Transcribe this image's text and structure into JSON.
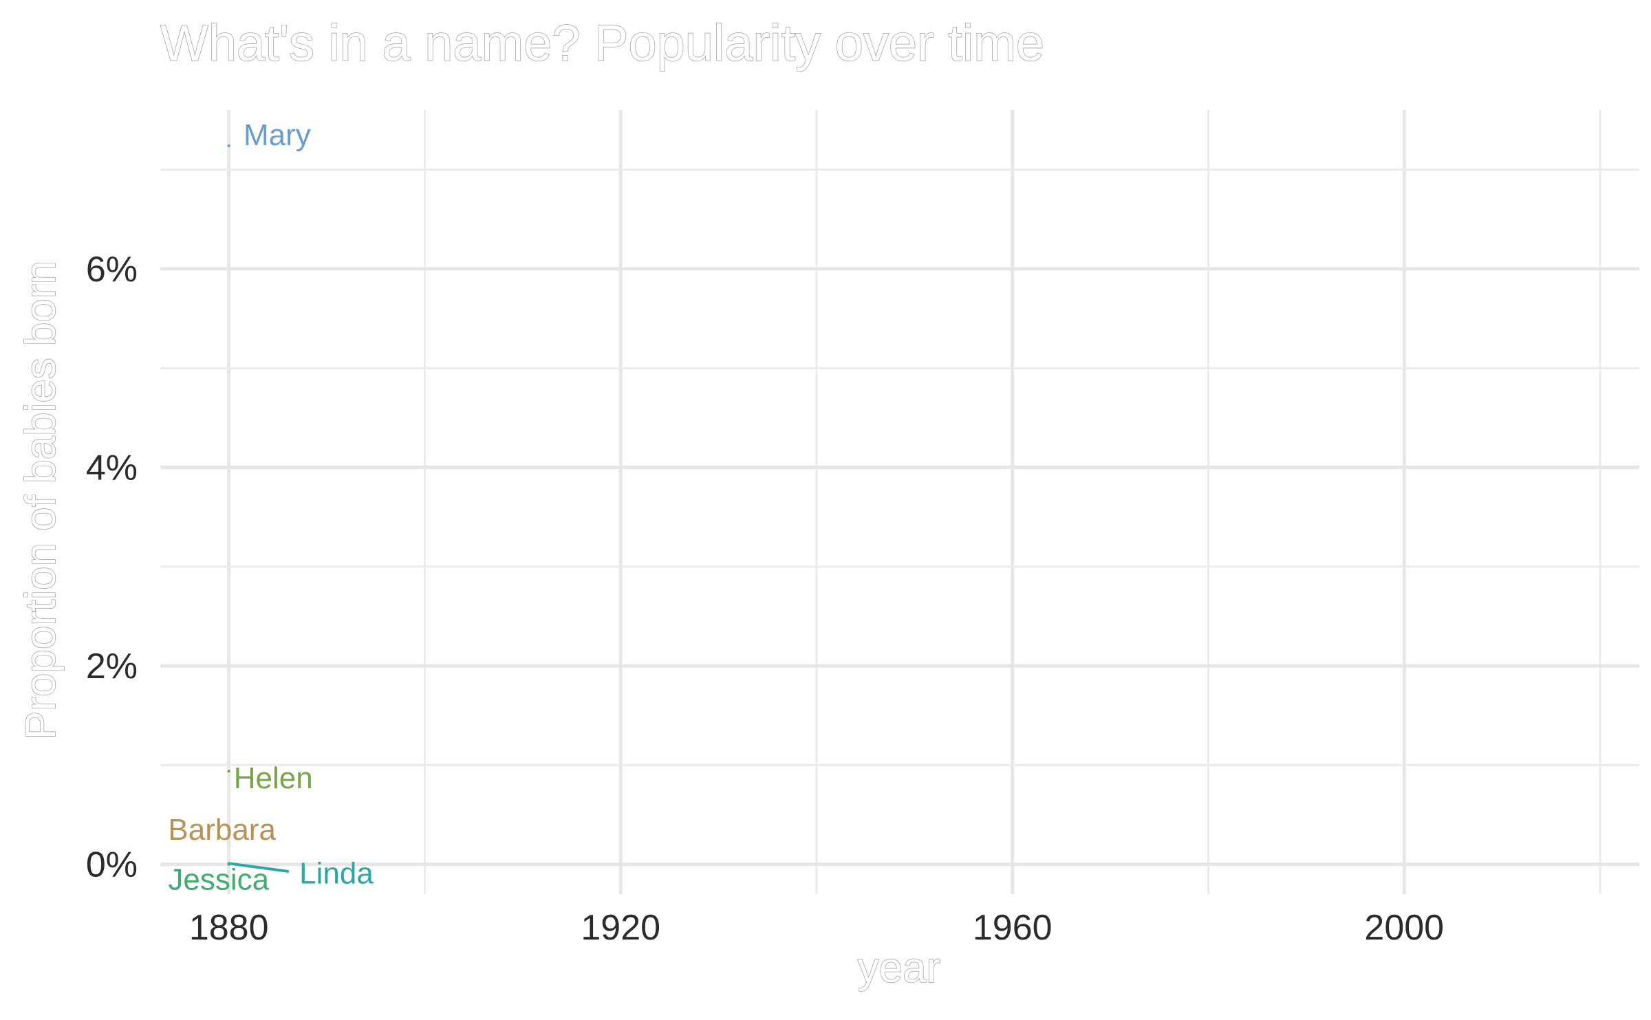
{
  "chart_data": {
    "type": "line",
    "title": "What's in a name? Popularity over time",
    "xlabel": "year",
    "ylabel": "Proportion of babies born",
    "x_ticks": [
      "1880",
      "1920",
      "1960",
      "2000"
    ],
    "x_tick_values": [
      1880,
      1920,
      1960,
      2000
    ],
    "y_ticks": [
      "0%",
      "2%",
      "4%",
      "6%"
    ],
    "y_tick_values": [
      0,
      0.02,
      0.04,
      0.06
    ],
    "xlim": [
      1873,
      2024
    ],
    "ylim": [
      -0.003,
      0.076
    ],
    "grid": true,
    "legend": "none",
    "series": [
      {
        "name": "Mary",
        "color": "#6a9ccd",
        "points": [
          [
            1880,
            0.0724
          ]
        ],
        "label": {
          "x": 1881.5,
          "y": 0.0735
        }
      },
      {
        "name": "Helen",
        "color": "#79a548",
        "points": [
          [
            1880,
            0.0094
          ]
        ],
        "label": {
          "x": 1880.5,
          "y": 0.0087
        }
      },
      {
        "name": "Barbara",
        "color": "#b69257",
        "points": [
          [
            1880,
            0.0035
          ]
        ],
        "label": {
          "x": 1873.8,
          "y": 0.0035
        }
      },
      {
        "name": "Linda",
        "color": "#2ca8a3",
        "points": [
          [
            1880,
            0.0001
          ],
          [
            1886,
            -0.0007
          ]
        ],
        "label": {
          "x": 1887.2,
          "y": -0.0009
        }
      },
      {
        "name": "Jessica",
        "color": "#43aa72",
        "points": [
          [
            1880,
            0.0
          ]
        ],
        "label": {
          "x": 1873.8,
          "y": -0.0015
        }
      }
    ]
  }
}
